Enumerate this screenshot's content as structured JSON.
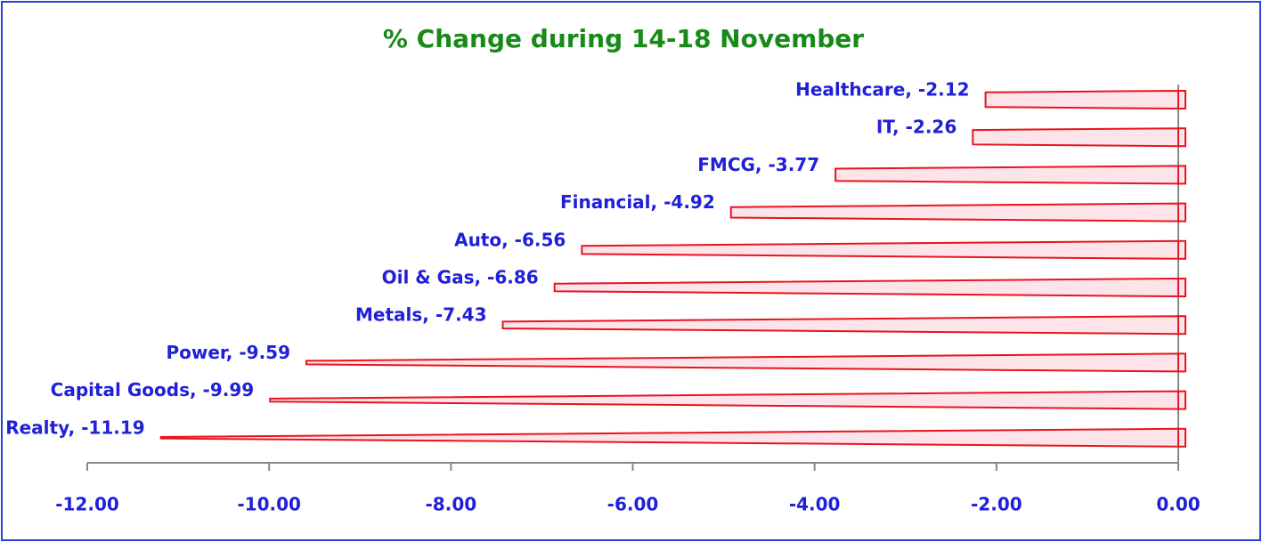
{
  "chart_data": {
    "type": "bar",
    "orientation": "horizontal",
    "title": "% Change during 14-18 November",
    "categories": [
      "Healthcare",
      "IT",
      "FMCG",
      "Financial",
      "Auto",
      "Oil & Gas",
      "Metals",
      "Power",
      "Capital Goods",
      "Realty"
    ],
    "values": [
      -2.12,
      -2.26,
      -3.77,
      -4.92,
      -6.56,
      -6.86,
      -7.43,
      -9.59,
      -9.99,
      -11.19
    ],
    "value_labels": [
      "Healthcare, -2.12",
      "IT, -2.26",
      "FMCG, -3.77",
      "Financial, -4.92",
      "Auto, -6.56",
      "Oil & Gas, -6.86",
      "Metals, -7.43",
      "Power, -9.59",
      "Capital Goods, -9.99",
      "Realty, -11.19"
    ],
    "color": "#e8141e",
    "xlim": [
      -12,
      0
    ],
    "xticks": [
      {
        "value": -12,
        "label": "-12.00"
      },
      {
        "value": -10,
        "label": "-10.00"
      },
      {
        "value": -8,
        "label": "-8.00"
      },
      {
        "value": -6,
        "label": "-6.00"
      },
      {
        "value": -4,
        "label": "-4.00"
      },
      {
        "value": -2,
        "label": "-2.00"
      },
      {
        "value": 0,
        "label": "0.00"
      }
    ],
    "grid": false
  }
}
